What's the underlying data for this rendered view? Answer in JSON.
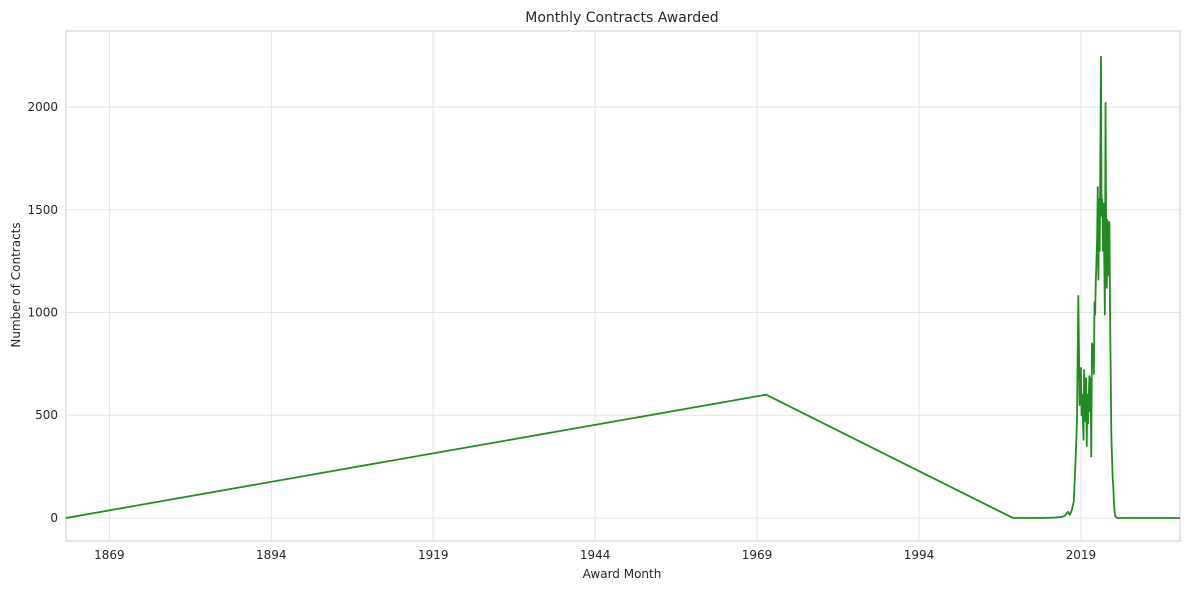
{
  "chart_data": {
    "type": "line",
    "title": "Monthly Contracts Awarded",
    "xlabel": "Award Month",
    "ylabel": "Number of Contracts",
    "x_ticks": [
      "1869",
      "1894",
      "1919",
      "1944",
      "1969",
      "1994",
      "2019"
    ],
    "y_ticks": [
      "0",
      "500",
      "1000",
      "1500",
      "2000"
    ],
    "xlim": [
      1862.3,
      2034.3
    ],
    "ylim": [
      -112,
      2370
    ],
    "grid": true,
    "legend": "none",
    "series": [
      {
        "color": "#228b22",
        "x": [
          1862.3,
          1970.4,
          2008.5,
          2013.0,
          2015.0,
          2016.0,
          2016.5,
          2017.0,
          2017.3,
          2017.6,
          2017.9,
          2018.2,
          2018.4,
          2018.6,
          2018.8,
          2019.0,
          2019.1,
          2019.2,
          2019.4,
          2019.5,
          2019.7,
          2019.8,
          2019.9,
          2020.0,
          2020.1,
          2020.3,
          2020.4,
          2020.5,
          2020.6,
          2020.7,
          2020.9,
          2021.0,
          2021.1,
          2021.2,
          2021.3,
          2021.5,
          2021.6,
          2021.7,
          2021.8,
          2021.9,
          2022.1,
          2022.2,
          2022.3,
          2022.4,
          2022.5,
          2022.7,
          2022.8,
          2022.9,
          2023.0,
          2023.1,
          2023.3,
          2023.4,
          2023.5,
          2023.6,
          2023.7,
          2023.9,
          2024.0,
          2024.1,
          2024.2,
          2024.3,
          2024.5,
          2024.6,
          2024.7,
          2024.8,
          2024.9,
          2025.1,
          2025.2,
          2025.3,
          2025.4,
          2025.5,
          2025.7,
          2025.8,
          2025.9,
          2026.0,
          2026.5,
          2034.3
        ],
        "y": [
          0,
          600,
          0,
          0,
          2,
          5,
          10,
          30,
          15,
          40,
          80,
          300,
          480,
          1080,
          550,
          730,
          500,
          600,
          380,
          720,
          470,
          680,
          350,
          600,
          460,
          690,
          520,
          680,
          300,
          850,
          820,
          700,
          1050,
          990,
          1150,
          1350,
          1610,
          1160,
          1550,
          1300,
          2245,
          1470,
          1550,
          1300,
          1530,
          990,
          2020,
          1400,
          1120,
          1450,
          1180,
          1440,
          1000,
          700,
          400,
          200,
          150,
          80,
          30,
          10,
          2,
          0,
          0,
          0,
          0,
          0,
          0,
          0,
          0,
          0,
          0,
          0,
          0,
          0,
          0,
          0
        ]
      }
    ]
  }
}
